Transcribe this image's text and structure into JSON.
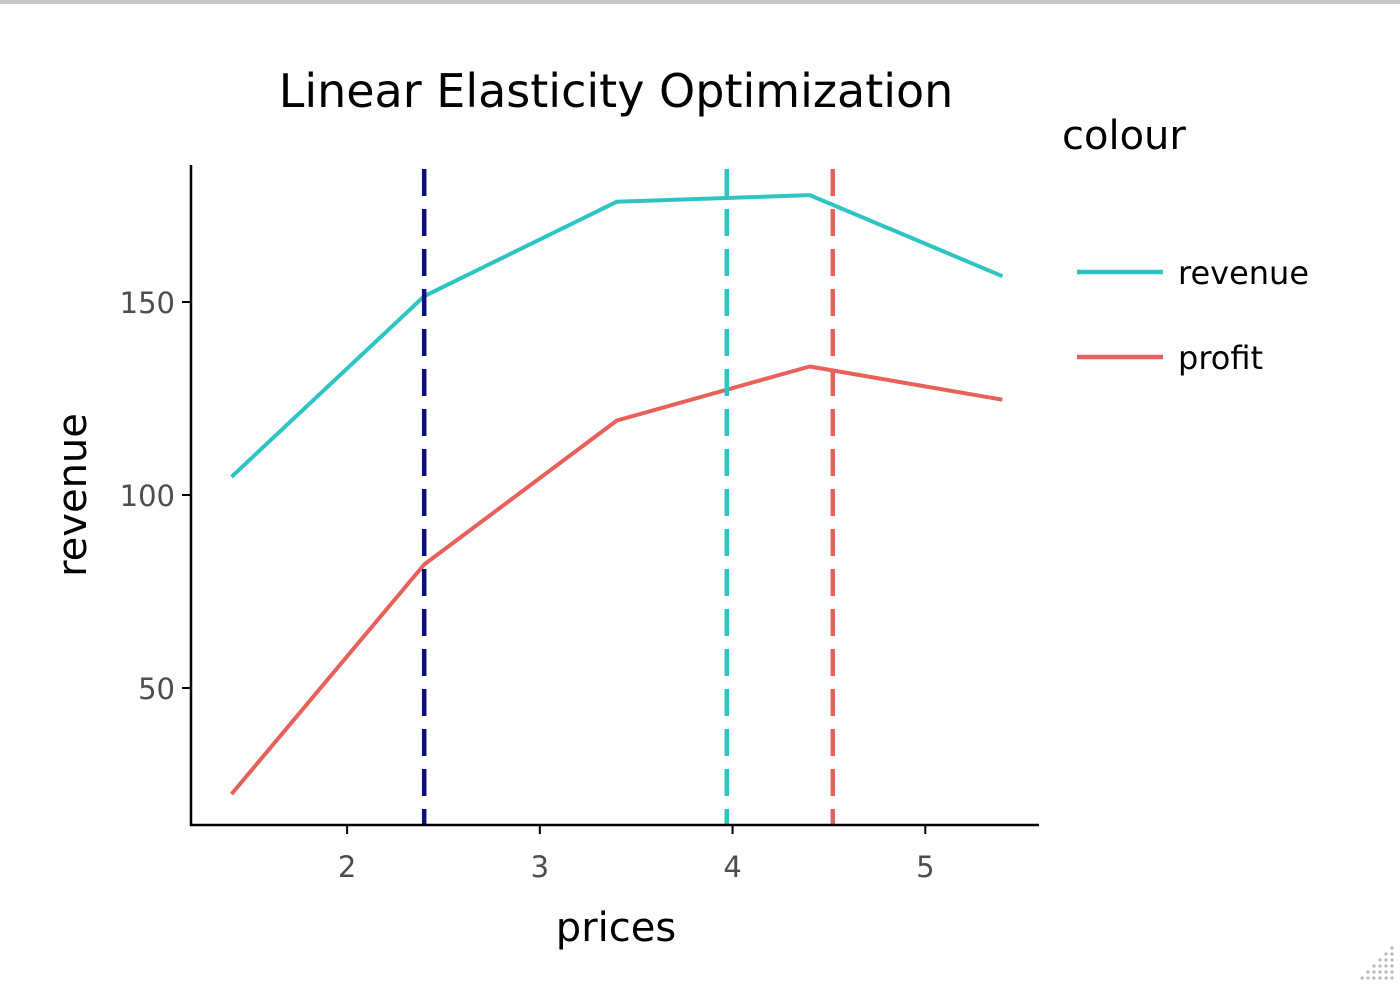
{
  "colors": {
    "revenue": "#2ec4c4",
    "profit": "#e8605a",
    "marker_dark": "#0c0f7d",
    "axis": "#000000",
    "tick_text": "#4d4d4d"
  },
  "chart_data": {
    "type": "line",
    "title": "Linear Elasticity Optimization",
    "xlabel": "prices",
    "ylabel": "revenue",
    "xlim": [
      1.19,
      5.59
    ],
    "ylim": [
      14.5,
      185.5
    ],
    "x_ticks": [
      2,
      3,
      4,
      5
    ],
    "y_ticks": [
      50,
      100,
      150
    ],
    "grid": false,
    "legend": {
      "title": "colour",
      "position": "right",
      "entries": [
        {
          "label": "revenue",
          "color": "#2ec4c4"
        },
        {
          "label": "profit",
          "color": "#e8605a"
        }
      ]
    },
    "series": [
      {
        "name": "revenue",
        "color": "#2ec4c4",
        "x": [
          1.4,
          2.4,
          3.4,
          4.4,
          5.4
        ],
        "y": [
          104.7,
          151.5,
          176.0,
          177.7,
          156.7
        ]
      },
      {
        "name": "profit",
        "color": "#e8605a",
        "x": [
          1.4,
          2.4,
          3.4,
          4.4,
          5.4
        ],
        "y": [
          22.5,
          82.0,
          119.3,
          133.3,
          124.7
        ]
      }
    ],
    "vlines": [
      {
        "x": 2.4,
        "color": "#0c0f7d",
        "style": "dashed"
      },
      {
        "x": 3.97,
        "color": "#2ec4c4",
        "style": "dashed"
      },
      {
        "x": 4.52,
        "color": "#e8605a",
        "style": "dashed"
      }
    ]
  }
}
